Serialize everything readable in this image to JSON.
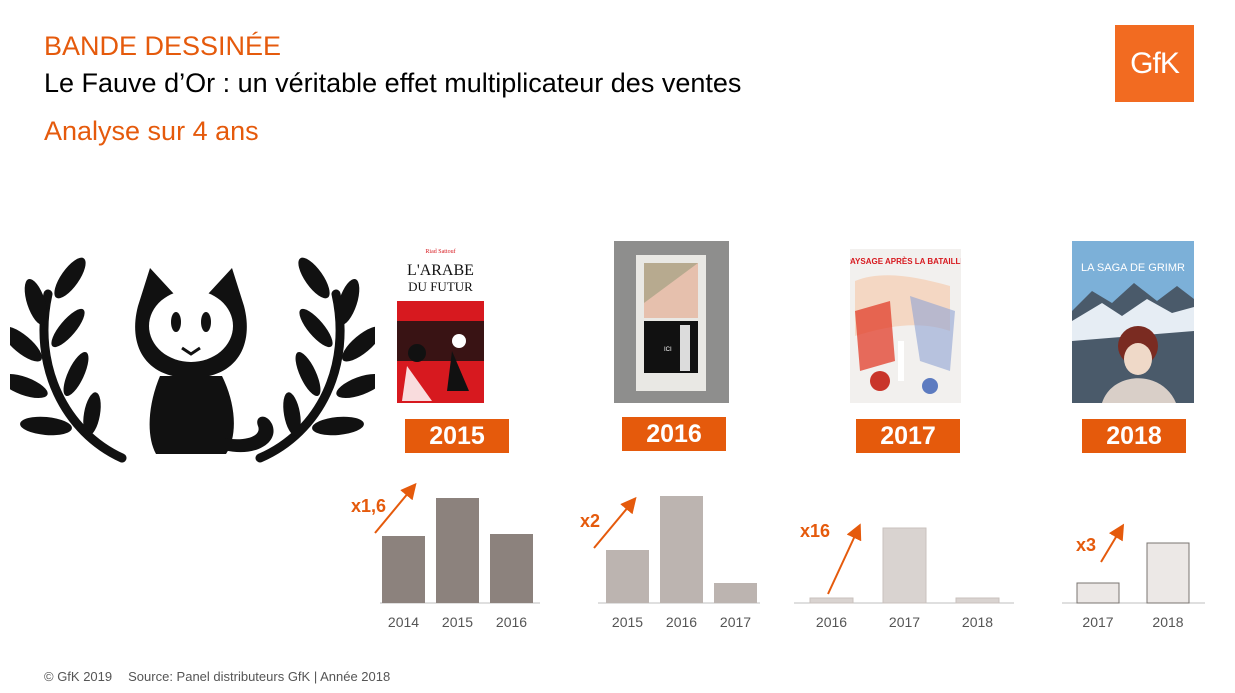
{
  "header": {
    "category": "BANDE DESSINÉE",
    "title": "Le Fauve d’Or : un véritable effet multiplicateur des ventes",
    "subtitle": "Analyse sur 4 ans"
  },
  "logo": {
    "text": "GfK",
    "color": "#f26b21"
  },
  "emblem": {
    "icon": "fauve-cat-laurel-icon"
  },
  "books": [
    {
      "year": "2015",
      "cover_title_1": "L'ARABE",
      "cover_title_2": "DU FUTUR",
      "cover_author": "Riad Sattouf"
    },
    {
      "year": "2016",
      "cover_title_1": "ICI"
    },
    {
      "year": "2017",
      "cover_title_1": "PAYSAGE APRÈS LA BATAILLE"
    },
    {
      "year": "2018",
      "cover_title_1": "LA SAGA DE GRIMR"
    }
  ],
  "colors": {
    "accent": "#e55a0c",
    "bar_2015": "#8c827d",
    "bar_2016": "#bcb4b0",
    "bar_2017": "#d9d3d0",
    "bar_2018": "#ece8e6"
  },
  "chart_data": [
    {
      "type": "bar",
      "categories": [
        "2014",
        "2015",
        "2016"
      ],
      "values": [
        67,
        105,
        69
      ],
      "multiplier": "x1,6",
      "ylim": [
        0,
        110
      ]
    },
    {
      "type": "bar",
      "categories": [
        "2015",
        "2016",
        "2017"
      ],
      "values": [
        53,
        107,
        20
      ],
      "multiplier": "x2",
      "ylim": [
        0,
        110
      ]
    },
    {
      "type": "bar",
      "categories": [
        "2016",
        "2017",
        "2018"
      ],
      "values": [
        5,
        75,
        5
      ],
      "multiplier": "x16",
      "ylim": [
        0,
        110
      ]
    },
    {
      "type": "bar",
      "categories": [
        "2017",
        "2018"
      ],
      "values": [
        20,
        60
      ],
      "multiplier": "x3",
      "ylim": [
        0,
        110
      ]
    }
  ],
  "footer": {
    "copyright": "© GfK 2019",
    "source": "Source: Panel distributeurs GfK | Année 2018"
  }
}
